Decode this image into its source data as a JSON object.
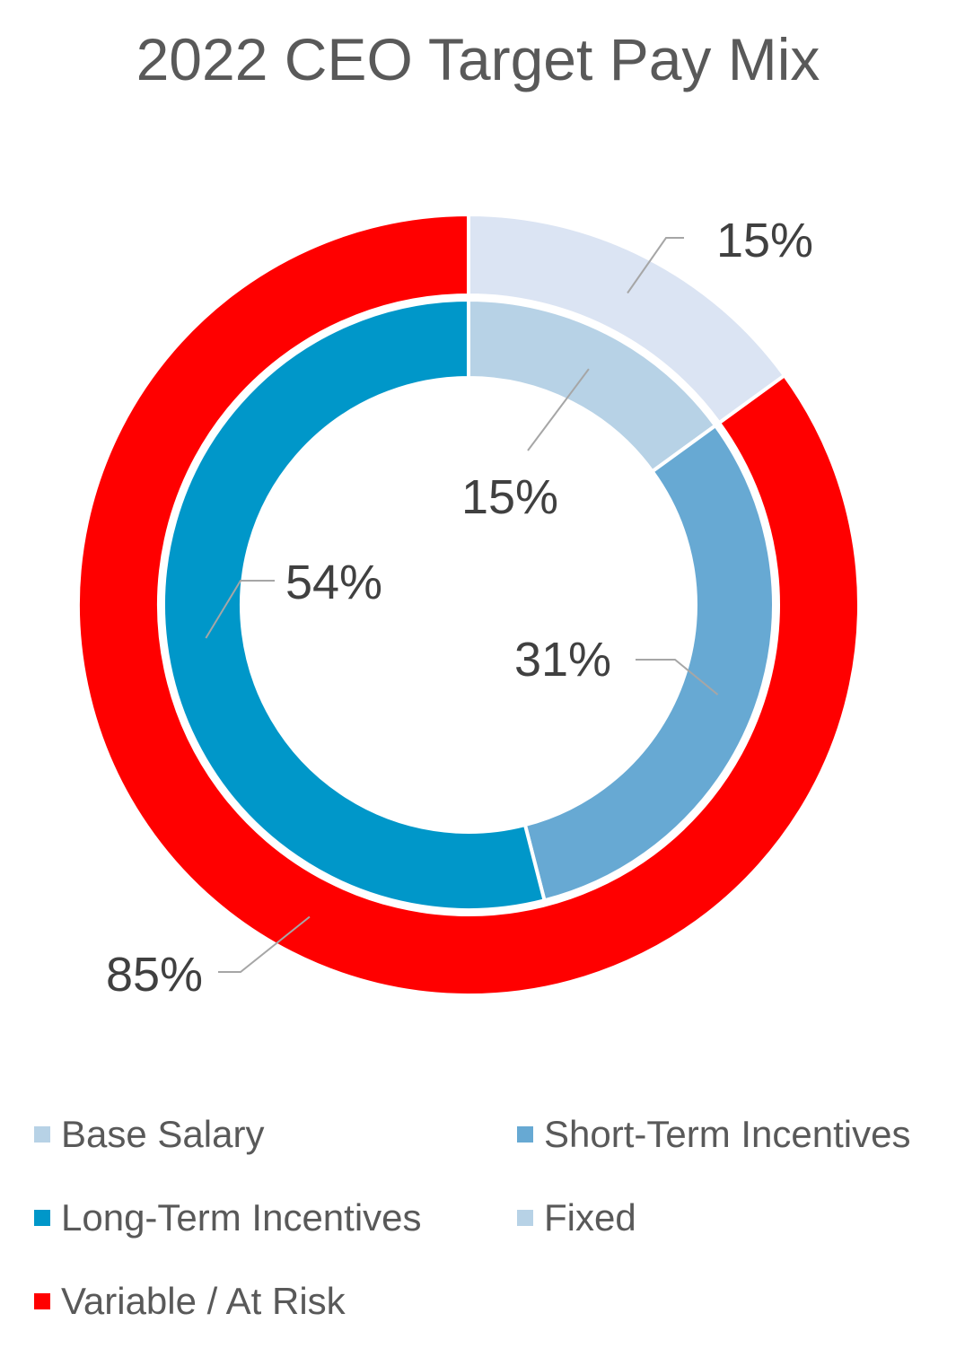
{
  "chart_data": {
    "type": "pie",
    "variant": "nested-donut",
    "title": "2022 CEO Target Pay Mix",
    "inner_ring": {
      "categories": [
        "Base Salary",
        "Short-Term Incentives",
        "Long-Term Incentives"
      ],
      "values": [
        15,
        31,
        54
      ],
      "labels": [
        "15%",
        "31%",
        "54%"
      ],
      "colors": [
        "#b7d2e6",
        "#67a9d3",
        "#0097c9"
      ]
    },
    "outer_ring": {
      "categories": [
        "Fixed",
        "Variable / At Risk"
      ],
      "values": [
        15,
        85
      ],
      "labels": [
        "15%",
        "85%"
      ],
      "colors": [
        "#dbe4f3",
        "#ff0000"
      ]
    },
    "legend": {
      "position": "bottom",
      "items": [
        {
          "label": "Base Salary",
          "color": "#b7d2e6"
        },
        {
          "label": "Short-Term Incentives",
          "color": "#67a9d3"
        },
        {
          "label": "Long-Term Incentives",
          "color": "#0097c9"
        },
        {
          "label": "Fixed",
          "color": "#b7d2e6"
        },
        {
          "label": "Variable / At Risk",
          "color": "#ff0000"
        }
      ]
    },
    "label_color": "#404040",
    "leader_color": "#a6a6a6"
  }
}
